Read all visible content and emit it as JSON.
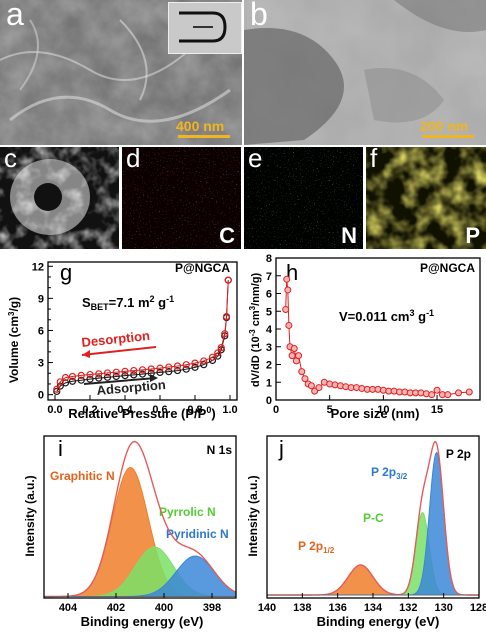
{
  "panels": {
    "a": {
      "letter": "a",
      "scale": "400 nm"
    },
    "b": {
      "letter": "b",
      "scale": "200 nm"
    },
    "c": {
      "letter": "c"
    },
    "d": {
      "letter": "d",
      "element": "C"
    },
    "e": {
      "letter": "e",
      "element": "N"
    },
    "f": {
      "letter": "f",
      "element": "P"
    }
  },
  "chart_data": [
    {
      "id": "g",
      "type": "line",
      "letter": "g",
      "title": "P@NGCA",
      "xlabel": "Relative Pressure (P/P0)",
      "ylabel": "Volume (cm3/g)",
      "xlim": [
        0,
        1
      ],
      "ylim": [
        0,
        12
      ],
      "xticks": [
        "0.0",
        "0.2",
        "0.4",
        "0.6",
        "0.8",
        "1.0"
      ],
      "yticks": [
        "0",
        "3",
        "6",
        "9",
        "12"
      ],
      "yticks_minor": [
        "1",
        "2",
        "4",
        "5",
        "7",
        "8",
        "10",
        "11"
      ],
      "annotation": "SBET=7.1 m2 g-1",
      "series": [
        {
          "name": "Adsorption",
          "color": "#1a1a1a",
          "x": [
            0.01,
            0.03,
            0.06,
            0.1,
            0.15,
            0.2,
            0.25,
            0.3,
            0.35,
            0.4,
            0.45,
            0.5,
            0.55,
            0.6,
            0.65,
            0.7,
            0.75,
            0.8,
            0.85,
            0.9,
            0.93,
            0.95,
            0.97,
            0.98,
            0.99
          ],
          "y": [
            0.3,
            0.8,
            1.1,
            1.25,
            1.35,
            1.45,
            1.55,
            1.62,
            1.7,
            1.78,
            1.85,
            1.92,
            2.0,
            2.08,
            2.15,
            2.25,
            2.38,
            2.55,
            2.8,
            3.2,
            3.6,
            4.2,
            5.5,
            7.2,
            10.7
          ]
        },
        {
          "name": "Desorption",
          "color": "#e02020",
          "x": [
            0.99,
            0.98,
            0.97,
            0.95,
            0.93,
            0.9,
            0.85,
            0.8,
            0.75,
            0.7,
            0.65,
            0.6,
            0.55,
            0.5,
            0.45,
            0.4,
            0.35,
            0.3,
            0.25,
            0.2,
            0.15,
            0.1,
            0.06,
            0.03,
            0.01
          ],
          "y": [
            10.7,
            7.3,
            5.7,
            4.4,
            3.9,
            3.5,
            3.15,
            2.95,
            2.8,
            2.68,
            2.58,
            2.48,
            2.4,
            2.32,
            2.25,
            2.18,
            2.1,
            2.03,
            1.95,
            1.88,
            1.8,
            1.7,
            1.6,
            1.2,
            0.5
          ]
        }
      ]
    },
    {
      "id": "h",
      "type": "line",
      "letter": "h",
      "title": "P@NGCA",
      "xlabel": "Pore size (nm)",
      "ylabel": "dV/dD (10-3 cm3/nm/g)",
      "xlim": [
        0,
        19
      ],
      "ylim": [
        0,
        8
      ],
      "xticks": [
        "0",
        "5",
        "10",
        "15"
      ],
      "yticks": [
        "0",
        "1",
        "2",
        "3",
        "4",
        "5",
        "6",
        "7",
        "8"
      ],
      "annotation": "V=0.011 cm3 g-1",
      "series": [
        {
          "name": "",
          "color": "#e02020",
          "x": [
            0.9,
            1.0,
            1.1,
            1.2,
            1.3,
            1.5,
            1.7,
            1.9,
            2.1,
            2.4,
            2.7,
            3.0,
            3.3,
            3.6,
            4.0,
            4.5,
            5,
            5.5,
            6,
            6.5,
            7,
            7.5,
            8,
            8.5,
            9,
            9.5,
            10,
            10.5,
            11,
            11.5,
            12,
            12.5,
            13,
            13.5,
            14,
            14.5,
            15,
            15.5,
            16,
            17,
            18
          ],
          "y": [
            5.1,
            6.8,
            6.2,
            4.2,
            3.0,
            2.5,
            2.9,
            2.2,
            2.5,
            1.6,
            1.2,
            0.9,
            0.8,
            0.5,
            0.7,
            1.0,
            0.9,
            0.85,
            0.8,
            0.75,
            0.7,
            0.7,
            0.65,
            0.6,
            0.6,
            0.6,
            0.55,
            0.5,
            0.5,
            0.45,
            0.45,
            0.4,
            0.4,
            0.4,
            0.35,
            0.3,
            0.55,
            0.3,
            0.3,
            0.4,
            0.45
          ]
        }
      ]
    },
    {
      "id": "i",
      "type": "area",
      "letter": "i",
      "title": "N 1s",
      "xlabel": "Binding energy (eV)",
      "ylabel": "Intensity (a.u.)",
      "xlim": [
        405,
        397
      ],
      "xticks": [
        "404",
        "402",
        "400",
        "398"
      ],
      "series": [
        {
          "name": "Graphitic N",
          "center": 401.4,
          "width": 0.75,
          "height": 0.86,
          "color": "#f07f2a",
          "text_color": "#e4621a"
        },
        {
          "name": "Pyrrolic N",
          "center": 400.4,
          "width": 0.8,
          "height": 0.33,
          "color": "#7be066",
          "text_color": "#55cc33"
        },
        {
          "name": "Pyridinic N",
          "center": 398.7,
          "width": 0.8,
          "height": 0.27,
          "color": "#3c87d8",
          "text_color": "#2b78d0"
        }
      ]
    },
    {
      "id": "j",
      "type": "area",
      "letter": "j",
      "title": "P 2p",
      "xlabel": "Binding energy (eV)",
      "ylabel": "Intensity (a.u.)",
      "xlim": [
        140,
        128
      ],
      "xticks": [
        "140",
        "138",
        "136",
        "134",
        "132",
        "130",
        "128"
      ],
      "series": [
        {
          "name": "P 2p1/2",
          "label_main": "P 2p",
          "label_sub": "1/2",
          "center": 134.7,
          "width": 0.7,
          "height": 0.2,
          "color": "#f07f2a",
          "text_color": "#e4621a"
        },
        {
          "name": "P-C",
          "center": 131.2,
          "width": 0.38,
          "height": 0.55,
          "color": "#7be066",
          "text_color": "#55cc33"
        },
        {
          "name": "P 2p3/2",
          "label_main": "P 2p",
          "label_sub": "3/2",
          "center": 130.4,
          "width": 0.4,
          "height": 0.95,
          "color": "#3c87d8",
          "text_color": "#2b78d0"
        }
      ]
    }
  ]
}
